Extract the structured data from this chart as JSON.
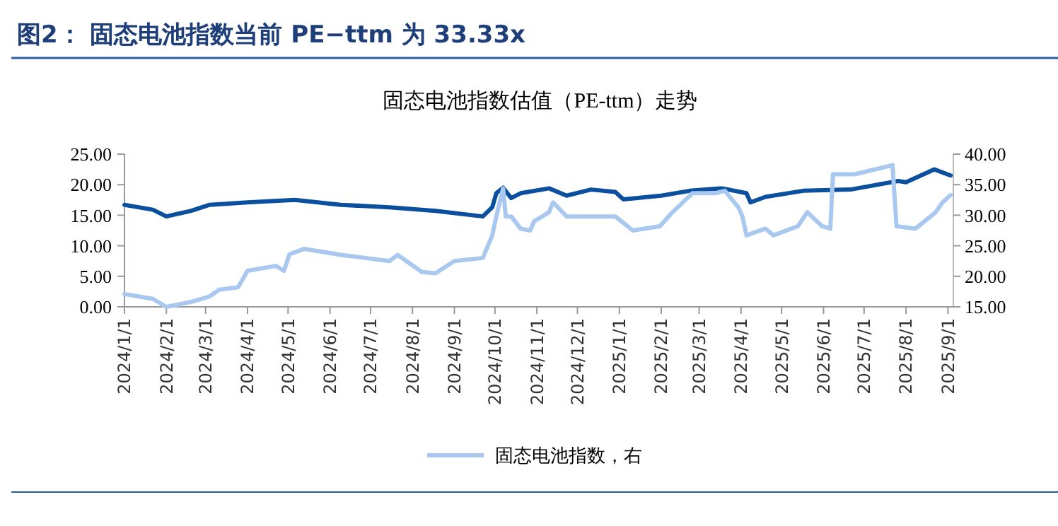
{
  "chart_data": {
    "type": "line",
    "title": "图2：  固态电池指数当前 PE−ttm 为 33.33x",
    "subtitle": "固态电池指数估值（PE-ttm）走势",
    "xlim": [
      "2024-01-01",
      "2025-09-05"
    ],
    "xticks": [
      {
        "value": "2024-01-01",
        "label": "2024/1/1"
      },
      {
        "value": "2024-02-01",
        "label": "2024/2/1"
      },
      {
        "value": "2024-03-01",
        "label": "2024/3/1"
      },
      {
        "value": "2024-04-01",
        "label": "2024/4/1"
      },
      {
        "value": "2024-05-01",
        "label": "2024/5/1"
      },
      {
        "value": "2024-06-01",
        "label": "2024/6/1"
      },
      {
        "value": "2024-07-01",
        "label": "2024/7/1"
      },
      {
        "value": "2024-08-01",
        "label": "2024/8/1"
      },
      {
        "value": "2024-09-01",
        "label": "2024/9/1"
      },
      {
        "value": "2024-10-01",
        "label": "2024/10/1"
      },
      {
        "value": "2024-11-01",
        "label": "2024/11/1"
      },
      {
        "value": "2024-12-01",
        "label": "2024/12/1"
      },
      {
        "value": "2025-01-01",
        "label": "2025/1/1"
      },
      {
        "value": "2025-02-01",
        "label": "2025/2/1"
      },
      {
        "value": "2025-03-01",
        "label": "2025/3/1"
      },
      {
        "value": "2025-04-01",
        "label": "2025/4/1"
      },
      {
        "value": "2025-05-01",
        "label": "2025/5/1"
      },
      {
        "value": "2025-06-01",
        "label": "2025/6/1"
      },
      {
        "value": "2025-07-01",
        "label": "2025/7/1"
      },
      {
        "value": "2025-08-01",
        "label": "2025/8/1"
      },
      {
        "value": "2025-09-01",
        "label": "2025/9/1"
      }
    ],
    "ylim": [
      0,
      25
    ],
    "yticks": [
      {
        "value": 0,
        "label": "0.00"
      },
      {
        "value": 5,
        "label": "5.00"
      },
      {
        "value": 10,
        "label": "10.00"
      },
      {
        "value": 15,
        "label": "15.00"
      },
      {
        "value": 20,
        "label": "20.00"
      },
      {
        "value": 25,
        "label": "25.00"
      }
    ],
    "y2lim": [
      15,
      40
    ],
    "y2ticks": [
      {
        "value": 15,
        "label": "15.00"
      },
      {
        "value": 20,
        "label": "20.00"
      },
      {
        "value": 25,
        "label": "25.00"
      },
      {
        "value": 30,
        "label": "30.00"
      },
      {
        "value": 35,
        "label": "35.00"
      },
      {
        "value": 40,
        "label": "40.00"
      }
    ],
    "legend": "bottom",
    "grid": false,
    "marker": "none",
    "line_style": "solid",
    "series": [
      {
        "color": "#0b4f9f",
        "x": [
          "2024-01-01",
          "2024-01-22",
          "2024-02-01",
          "2024-02-19",
          "2024-03-04",
          "2024-04-01",
          "2024-05-06",
          "2024-06-09",
          "2024-07-15",
          "2024-08-18",
          "2024-09-22",
          "2024-09-29",
          "2024-10-02",
          "2024-10-07",
          "2024-10-13",
          "2024-10-20",
          "2024-11-10",
          "2024-11-23",
          "2024-12-11",
          "2024-12-29",
          "2025-01-04",
          "2025-02-01",
          "2025-02-22",
          "2025-03-18",
          "2025-04-05",
          "2025-04-08",
          "2025-04-19",
          "2025-05-17",
          "2025-06-21",
          "2025-07-26",
          "2025-08-01",
          "2025-08-22",
          "2025-09-03"
        ],
        "values": [
          16.7,
          15.9,
          14.8,
          15.7,
          16.7,
          17.1,
          17.5,
          16.7,
          16.3,
          15.7,
          14.8,
          16.3,
          18.6,
          19.5,
          17.8,
          18.6,
          19.4,
          18.2,
          19.2,
          18.8,
          17.6,
          18.2,
          19.0,
          19.4,
          18.6,
          17.1,
          18.0,
          19.0,
          19.2,
          20.6,
          20.4,
          22.5,
          21.5
        ]
      },
      {
        "name": "固态电池指数，右",
        "axis": "y2",
        "color": "#a9c8ef",
        "x": [
          "2024-01-01",
          "2024-01-22",
          "2024-02-01",
          "2024-02-19",
          "2024-03-04",
          "2024-03-11",
          "2024-03-25",
          "2024-04-01",
          "2024-04-22",
          "2024-04-28",
          "2024-05-02",
          "2024-05-13",
          "2024-06-09",
          "2024-07-15",
          "2024-07-21",
          "2024-08-08",
          "2024-08-18",
          "2024-09-01",
          "2024-09-22",
          "2024-09-29",
          "2024-10-02",
          "2024-10-07",
          "2024-10-09",
          "2024-10-13",
          "2024-10-20",
          "2024-10-27",
          "2024-10-30",
          "2024-11-10",
          "2024-11-13",
          "2024-11-23",
          "2024-12-29",
          "2025-01-11",
          "2025-01-31",
          "2025-02-08",
          "2025-02-24",
          "2025-03-13",
          "2025-03-20",
          "2025-03-30",
          "2025-04-02",
          "2025-04-05",
          "2025-04-19",
          "2025-04-25",
          "2025-05-13",
          "2025-05-20",
          "2025-05-31",
          "2025-06-06",
          "2025-06-08",
          "2025-06-24",
          "2025-07-22",
          "2025-07-25",
          "2025-08-08",
          "2025-08-23",
          "2025-08-28",
          "2025-09-03"
        ],
        "values": [
          17.1,
          16.3,
          15.0,
          15.8,
          16.7,
          17.8,
          18.2,
          20.9,
          21.7,
          20.9,
          23.6,
          24.5,
          23.5,
          22.5,
          23.5,
          20.7,
          20.5,
          22.5,
          23.0,
          26.7,
          29.8,
          34.4,
          29.8,
          29.8,
          27.8,
          27.5,
          29.0,
          30.5,
          32.1,
          29.8,
          29.8,
          27.5,
          28.2,
          30.2,
          33.6,
          33.6,
          34.0,
          31.3,
          29.8,
          26.7,
          27.8,
          26.7,
          28.2,
          30.5,
          28.2,
          27.8,
          36.7,
          36.7,
          38.2,
          28.2,
          27.8,
          30.5,
          32.1,
          33.3
        ]
      }
    ]
  }
}
